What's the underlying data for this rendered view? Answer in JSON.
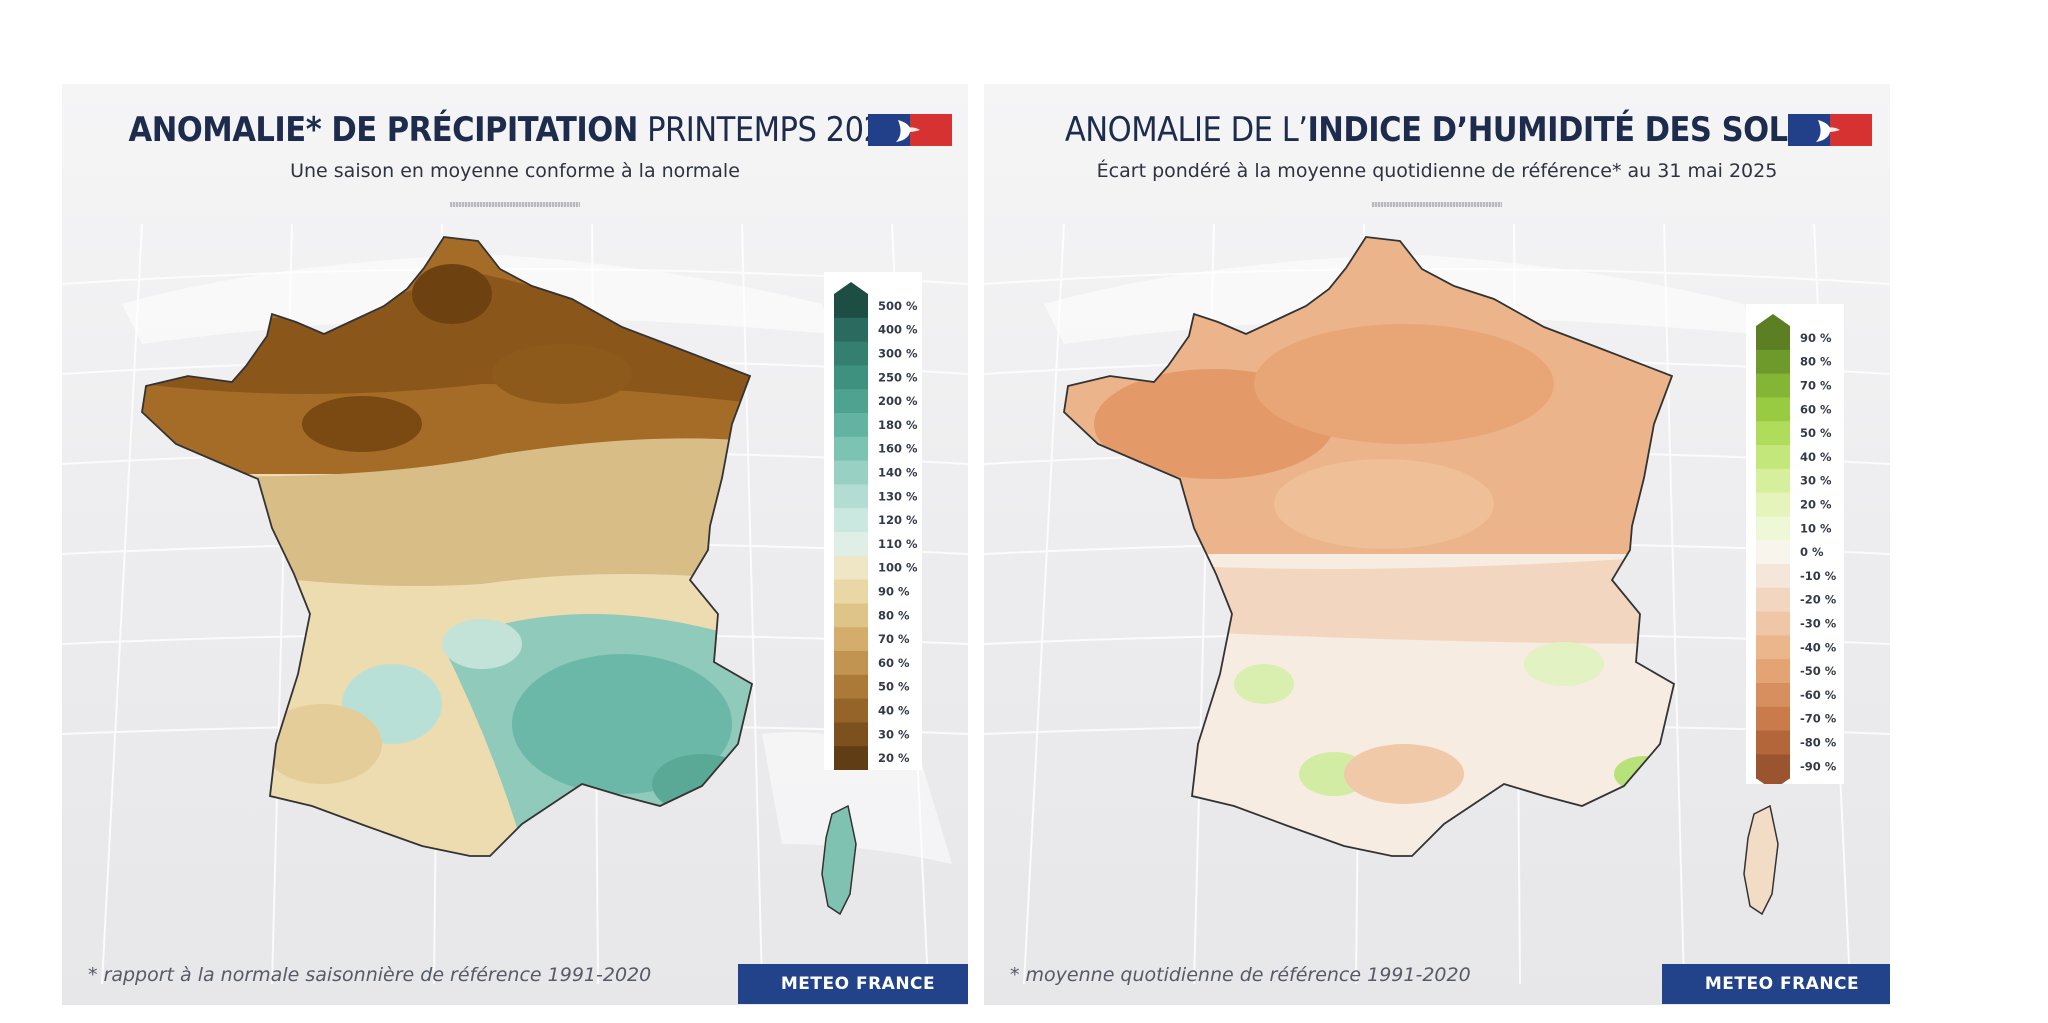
{
  "left_panel": {
    "title_bold": "ANOMALIE* DE PRÉCIPITATION",
    "title_light": "PRINTEMPS 2025",
    "subtitle": "Une saison en moyenne conforme à la normale",
    "footnote": "* rapport à la normale saisonnière de référence 1991-2020",
    "brand": "METEO FRANCE",
    "legend": {
      "labels": [
        "500 %",
        "400 %",
        "300 %",
        "250 %",
        "200 %",
        "180 %",
        "160 %",
        "140 %",
        "130 %",
        "120 %",
        "110 %",
        "100 %",
        "90 %",
        "80 %",
        "70 %",
        "60 %",
        "50 %",
        "40 %",
        "30 %",
        "20 %"
      ],
      "colors": [
        "#1e4d44",
        "#2b6b5f",
        "#357f70",
        "#3f917f",
        "#4da290",
        "#62b3a2",
        "#7dc3b3",
        "#98d1c4",
        "#b3ddd3",
        "#cbe8e0",
        "#dfeee6",
        "#efe6c6",
        "#e9d8a6",
        "#dfc48a",
        "#d4ad6c",
        "#c29452",
        "#ab7a39",
        "#946429",
        "#7c511e",
        "#603d15"
      ]
    },
    "colors": {
      "dry": "#9c6420",
      "normal": "#ecdcb0",
      "wet": "#6cb8a8"
    }
  },
  "right_panel": {
    "title_light": "ANOMALIE DE L’",
    "title_bold": "INDICE D’HUMIDITÉ DES SOLS",
    "subtitle": "Écart pondéré à la moyenne quotidienne de référence* au 31 mai 2025",
    "footnote": "* moyenne quotidienne de référence 1991-2020",
    "brand": "METEO FRANCE",
    "legend": {
      "labels": [
        "90 %",
        "80 %",
        "70 %",
        "60 %",
        "50 %",
        "40 %",
        "30 %",
        "20 %",
        "10 %",
        "0 %",
        "-10 %",
        "-20 %",
        "-30 %",
        "-40 %",
        "-50 %",
        "-60 %",
        "-70 %",
        "-80 %",
        "-90 %"
      ],
      "colors": [
        "#5b7f22",
        "#6d9a2a",
        "#84b534",
        "#98cb42",
        "#afdc5a",
        "#c4e77c",
        "#d6ef9c",
        "#e4f4ba",
        "#eef8d6",
        "#f7f5ec",
        "#f5e6da",
        "#f2d6c0",
        "#efc6a6",
        "#ebb68c",
        "#e3a373",
        "#d88f5f",
        "#c97b4c",
        "#b4663b",
        "#9a542f"
      ]
    },
    "colors": {
      "dry": "#e9a878",
      "neutral": "#f6ece2",
      "wet": "#c9ec90"
    }
  }
}
